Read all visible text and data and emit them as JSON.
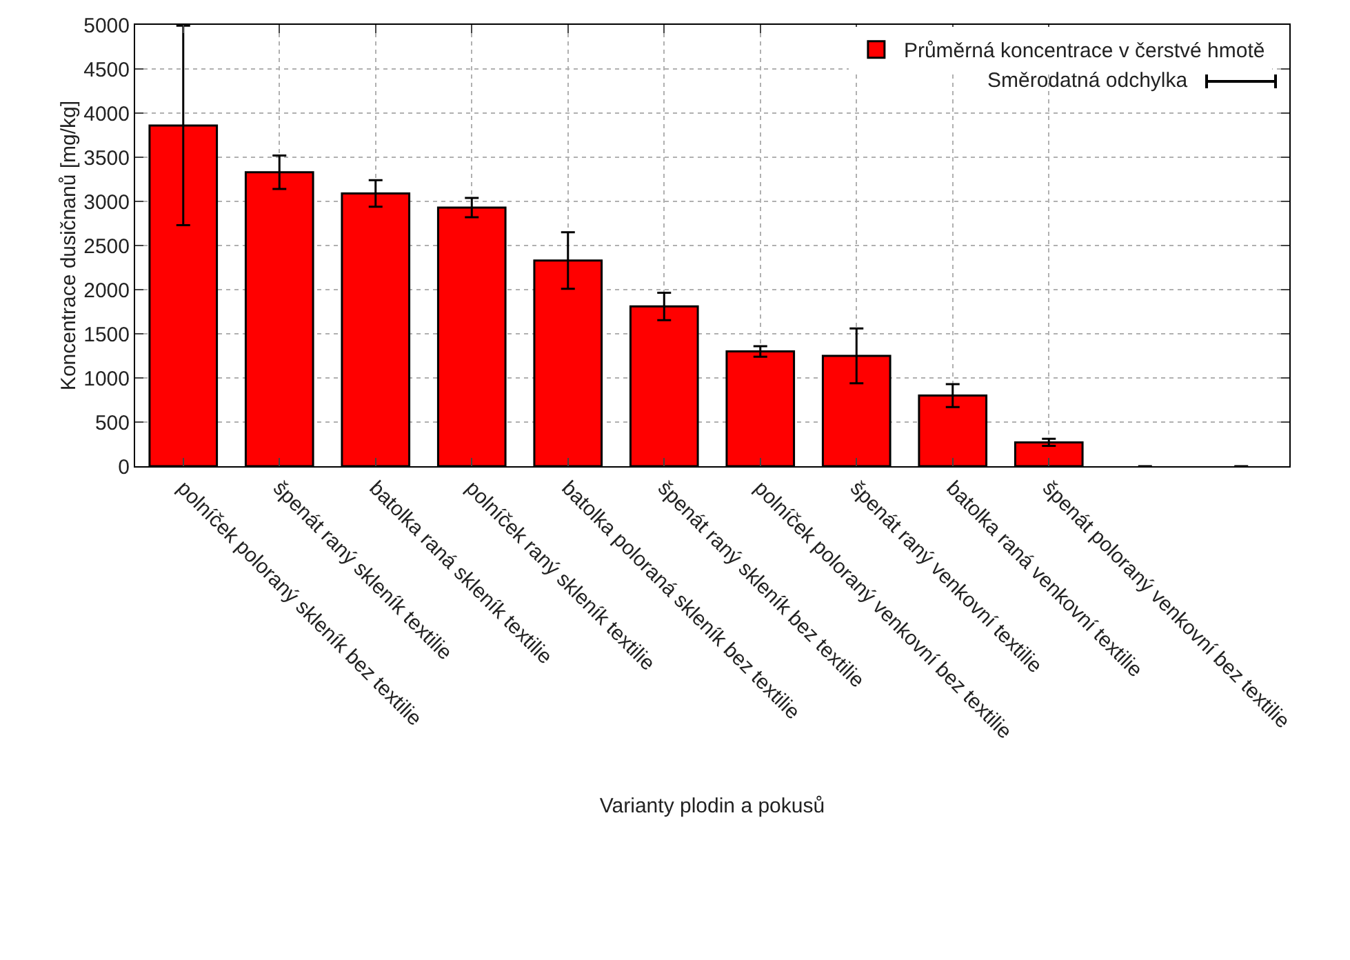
{
  "chart_data": {
    "type": "bar",
    "xlabel": "Varianty plodin a pokusů",
    "ylabel": "Koncentrace dusičnanů [mg/kg]",
    "categories": [
      "polníček poloraný skleník bez textilie",
      "špenát raný skleník textilie",
      "batolka raná skleník textilie",
      "polníček raný skleník textilie",
      "batolka poloraná skleník bez textilie",
      "špenát raný skleník bez textilie",
      "polníček poloraný venkovní bez textilie",
      "špenát raný venkovní textilie",
      "batolka raná venkovní textilie",
      "špenát poloraný venkovní bez textilie",
      null,
      null
    ],
    "series": [
      {
        "name": "Průměrná koncentrace v čerstvé hmotě",
        "color": "#ff0000",
        "values": [
          3860,
          3330,
          3090,
          2930,
          2330,
          1810,
          1300,
          1250,
          800,
          270,
          0,
          0
        ],
        "errors": [
          1130,
          190,
          150,
          110,
          320,
          155,
          60,
          310,
          130,
          40,
          0,
          0
        ]
      }
    ],
    "ylim": [
      0,
      5000
    ],
    "yticks": [
      0,
      500,
      1000,
      1500,
      2000,
      2500,
      3000,
      3500,
      4000,
      4500,
      5000
    ],
    "grid": true,
    "legend": "top right",
    "annotations": [
      "Směrodatná odchylka"
    ]
  }
}
